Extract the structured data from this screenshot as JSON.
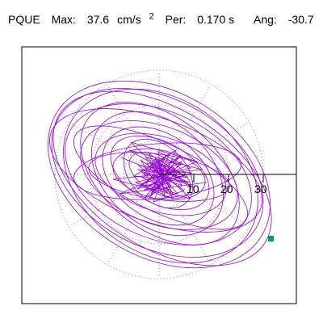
{
  "header": {
    "station": "PQUE",
    "max_label": "Max:",
    "max_value": "37.6",
    "max_unit": "cm/s",
    "max_unit_exp": "2",
    "period_label": "Per:",
    "period_value": "0.170 s",
    "angle_label": "Ang:",
    "angle_value": "-30.7"
  },
  "plot": {
    "ring_labels": [
      "10",
      "20",
      "30"
    ],
    "colors": {
      "trace": "#9400d3",
      "grid": "#808080",
      "marker": "#009e73",
      "frame": "#000000"
    }
  }
}
